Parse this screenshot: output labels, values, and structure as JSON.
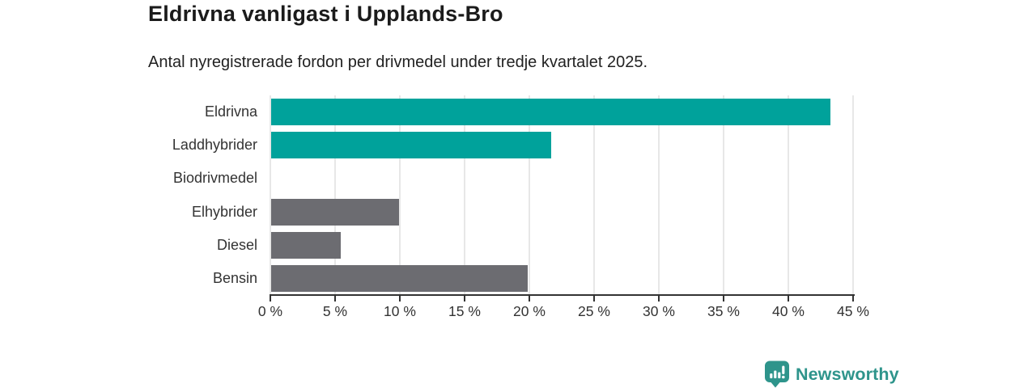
{
  "header": {
    "title": "Eldrivna vanligast i Upplands-Bro",
    "subtitle": "Antal nyregistrerade fordon per drivmedel under tredje kvartalet 2025."
  },
  "chart_data": {
    "type": "bar",
    "orientation": "horizontal",
    "title": "Eldrivna vanligast i Upplands-Bro",
    "subtitle": "Antal nyregistrerade fordon per drivmedel under tredje kvartalet 2025.",
    "categories": [
      "Eldrivna",
      "Laddhybrider",
      "Biodrivmedel",
      "Elhybrider",
      "Diesel",
      "Bensin"
    ],
    "values": [
      43.2,
      21.6,
      0,
      9.9,
      5.4,
      19.8
    ],
    "unit": "%",
    "bar_colors": [
      "#00A29B",
      "#00A29B",
      "#6C6C71",
      "#6C6C71",
      "#6C6C71",
      "#6C6C71"
    ],
    "xlabel": "",
    "ylabel": "",
    "xlim": [
      0,
      45
    ],
    "x_ticks": [
      0,
      5,
      10,
      15,
      20,
      25,
      30,
      35,
      40,
      45
    ],
    "x_tick_labels": [
      "0 %",
      "5 %",
      "10 %",
      "15 %",
      "20 %",
      "25 %",
      "30 %",
      "35 %",
      "40 %",
      "45 %"
    ],
    "grid": "vertical-gridlines-on",
    "legend": "none"
  },
  "footer": {
    "brand": "Newsworthy",
    "brand_color": "#2E948B"
  },
  "colors": {
    "accent_teal": "#00A29B",
    "neutral_gray": "#6C6C71",
    "gridline": "#E7E7E7",
    "axis": "#333333",
    "title_text": "#1B1B1B",
    "body_text": "#222222"
  }
}
